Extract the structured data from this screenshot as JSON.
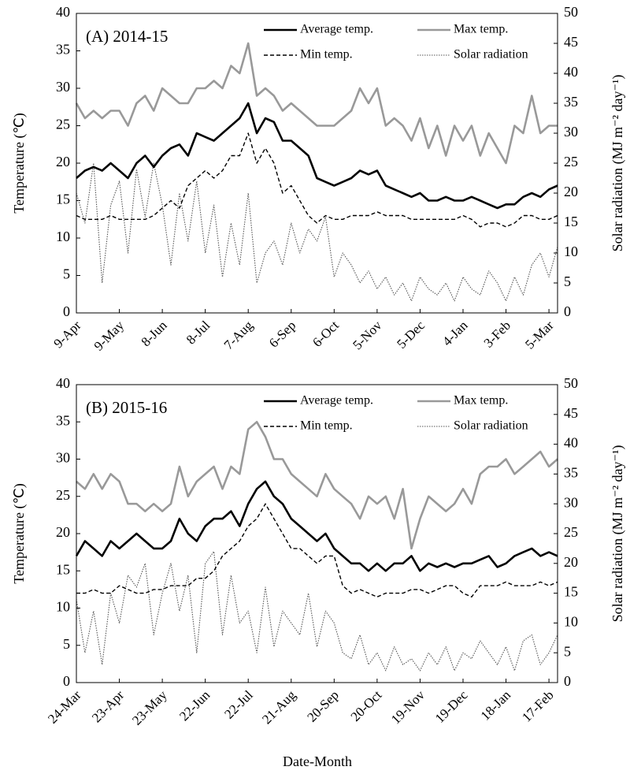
{
  "chart_data": [
    {
      "type": "line",
      "title": "(A) 2014-15",
      "y_label": "Temperature (℃)",
      "y2_label": "Solar radiation (MJ m⁻² day⁻¹)",
      "categories": [
        "9-Apr",
        null,
        null,
        null,
        null,
        "9-May",
        null,
        null,
        null,
        null,
        "8-Jun",
        null,
        null,
        null,
        null,
        "8-Jul",
        null,
        null,
        null,
        null,
        "7-Aug",
        null,
        null,
        null,
        null,
        "6-Sep",
        null,
        null,
        null,
        null,
        "6-Oct",
        null,
        null,
        null,
        null,
        "5-Nov",
        null,
        null,
        null,
        null,
        "5-Dec",
        null,
        null,
        null,
        null,
        "4-Jan",
        null,
        null,
        null,
        null,
        "3-Feb",
        null,
        null,
        null,
        null,
        "5-Mar",
        null
      ],
      "ylim": [
        0,
        40
      ],
      "yticks": [
        0,
        5,
        10,
        15,
        20,
        25,
        30,
        35,
        40
      ],
      "y2lim": [
        0,
        50
      ],
      "y2ticks": [
        0,
        5,
        10,
        15,
        20,
        25,
        30,
        35,
        40,
        45,
        50
      ],
      "series": [
        {
          "name": "Average temp.",
          "color": "#000000",
          "style": "solid",
          "values": [
            18,
            19,
            19.5,
            19,
            20,
            19,
            18,
            20,
            21,
            19.5,
            21,
            22,
            22.5,
            21,
            24,
            23.5,
            23,
            24,
            25,
            26,
            28,
            24,
            26,
            25.5,
            23,
            23,
            22,
            21,
            18,
            17.5,
            17,
            17.5,
            18,
            19,
            18.5,
            19,
            17,
            16.5,
            16,
            15.5,
            16,
            15,
            15,
            15.5,
            15,
            15,
            15.5,
            15,
            14.5,
            14,
            14.5,
            14.5,
            15.5,
            16,
            15.5,
            16.5,
            17
          ]
        },
        {
          "name": "Max temp.",
          "color": "#999999",
          "style": "solid",
          "values": [
            28,
            26,
            27,
            26,
            27,
            27,
            25,
            28,
            29,
            27,
            30,
            29,
            28,
            28,
            30,
            30,
            31,
            30,
            33,
            32,
            36,
            29,
            30,
            29,
            27,
            28,
            27,
            26,
            25,
            25,
            25,
            26,
            27,
            30,
            28,
            30,
            25,
            26,
            25,
            23,
            26,
            22,
            25,
            21,
            25,
            23,
            25,
            21,
            24,
            22,
            20,
            25,
            24,
            29,
            24,
            25,
            25
          ]
        },
        {
          "name": "Min temp.",
          "color": "#000000",
          "style": "dashed",
          "values": [
            13,
            12.5,
            12.5,
            12.5,
            13,
            12.5,
            12.5,
            12.5,
            12.5,
            13,
            14,
            15,
            14,
            17,
            18,
            19,
            18,
            19,
            21,
            21,
            24,
            20,
            22,
            20,
            16,
            17,
            15,
            13,
            12,
            13,
            12.5,
            12.5,
            13,
            13,
            13,
            13.5,
            13,
            13,
            13,
            12.5,
            12.5,
            12.5,
            12.5,
            12.5,
            12.5,
            13,
            12.5,
            11.5,
            12,
            12,
            11.5,
            12,
            13,
            13,
            12.5,
            12.5,
            13
          ]
        },
        {
          "name": "Solar radiation",
          "color": "#555555",
          "style": "dotted",
          "axis": "y2",
          "values": [
            20,
            15,
            25,
            5,
            18,
            22,
            10,
            24,
            16,
            25,
            18,
            8,
            20,
            12,
            22,
            10,
            18,
            6,
            15,
            8,
            20,
            5,
            10,
            12,
            8,
            15,
            10,
            14,
            12,
            16,
            6,
            10,
            8,
            5,
            7,
            4,
            6,
            3,
            5,
            2,
            6,
            4,
            3,
            5,
            2,
            6,
            4,
            3,
            7,
            5,
            2,
            6,
            3,
            8,
            10,
            6,
            11
          ]
        }
      ]
    },
    {
      "type": "line",
      "title": "(B) 2015-16",
      "y_label": "Temperature (℃)",
      "y2_label": "Solar radiation (MJ m⁻² day⁻¹)",
      "x_label": "Date-Month",
      "categories": [
        "24-Mar",
        null,
        null,
        null,
        null,
        "23-Apr",
        null,
        null,
        null,
        null,
        "23-May",
        null,
        null,
        null,
        null,
        "22-Jun",
        null,
        null,
        null,
        null,
        "22-Jul",
        null,
        null,
        null,
        null,
        "21-Aug",
        null,
        null,
        null,
        null,
        "20-Sep",
        null,
        null,
        null,
        null,
        "20-Oct",
        null,
        null,
        null,
        null,
        "19-Nov",
        null,
        null,
        null,
        null,
        "19-Dec",
        null,
        null,
        null,
        null,
        "18-Jan",
        null,
        null,
        null,
        null,
        "17-Feb",
        null
      ],
      "ylim": [
        0,
        40
      ],
      "yticks": [
        0,
        5,
        10,
        15,
        20,
        25,
        30,
        35,
        40
      ],
      "y2lim": [
        0,
        50
      ],
      "y2ticks": [
        0,
        5,
        10,
        15,
        20,
        25,
        30,
        35,
        40,
        45,
        50
      ],
      "series": [
        {
          "name": "Average temp.",
          "color": "#000000",
          "style": "solid",
          "values": [
            17,
            19,
            18,
            17,
            19,
            18,
            19,
            20,
            19,
            18,
            18,
            19,
            22,
            20,
            19,
            21,
            22,
            22,
            23,
            21,
            24,
            26,
            27,
            25,
            24,
            22,
            21,
            20,
            19,
            20,
            18,
            17,
            16,
            16,
            15,
            16,
            15,
            16,
            16,
            17,
            15,
            16,
            15.5,
            16,
            15.5,
            16,
            16,
            16.5,
            17,
            15.5,
            16,
            17,
            17.5,
            18,
            17,
            17.5,
            17
          ]
        },
        {
          "name": "Max temp.",
          "color": "#999999",
          "style": "solid",
          "values": [
            27,
            26,
            28,
            26,
            28,
            27,
            24,
            24,
            23,
            24,
            23,
            24,
            29,
            25,
            27,
            28,
            29,
            26,
            29,
            28,
            34,
            35,
            33,
            30,
            30,
            28,
            27,
            26,
            25,
            28,
            26,
            25,
            24,
            22,
            25,
            24,
            25,
            22,
            26,
            18,
            22,
            25,
            24,
            23,
            24,
            26,
            24,
            28,
            29,
            29,
            30,
            28,
            29,
            30,
            31,
            29,
            30
          ]
        },
        {
          "name": "Min temp.",
          "color": "#000000",
          "style": "dashed",
          "values": [
            12,
            12,
            12.5,
            12,
            12,
            13,
            12.5,
            12,
            12,
            12.5,
            12.5,
            13,
            13,
            13,
            14,
            14,
            15,
            17,
            18,
            19,
            21,
            22,
            24,
            22,
            20,
            18,
            18,
            17,
            16,
            17,
            17,
            13,
            12,
            12.5,
            12,
            11.5,
            12,
            12,
            12,
            12.5,
            12.5,
            12,
            12.5,
            13,
            13,
            12,
            11.5,
            13,
            13,
            13,
            13.5,
            13,
            13,
            13,
            13.5,
            13,
            13.5
          ]
        },
        {
          "name": "Solar radiation",
          "color": "#555555",
          "style": "dotted",
          "axis": "y2",
          "values": [
            14,
            5,
            12,
            3,
            15,
            10,
            18,
            16,
            20,
            8,
            15,
            20,
            12,
            18,
            5,
            20,
            22,
            8,
            18,
            10,
            12,
            5,
            16,
            6,
            12,
            10,
            8,
            15,
            6,
            12,
            10,
            5,
            4,
            8,
            3,
            5,
            2,
            6,
            3,
            4,
            2,
            5,
            3,
            6,
            2,
            5,
            4,
            7,
            5,
            3,
            6,
            2,
            7,
            8,
            3,
            5,
            8
          ]
        }
      ]
    }
  ]
}
